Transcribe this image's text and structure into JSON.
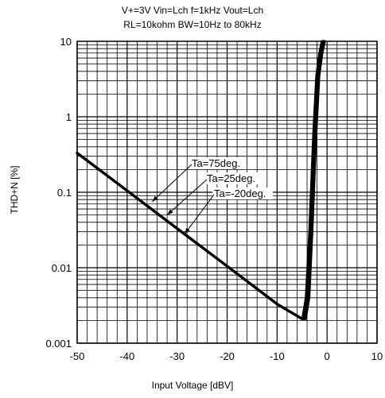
{
  "chart_data": {
    "type": "line",
    "title_lines": [
      "V+=3V Vin=Lch f=1kHz Vout=Lch",
      "RL=10kohm BW=10Hz to 80kHz"
    ],
    "xlabel": "Input Voltage [dBV]",
    "ylabel": "THD+N [%]",
    "xlim": [
      -50,
      10
    ],
    "ylim": [
      0.001,
      10
    ],
    "yscale": "log",
    "grid": true,
    "x_ticks": [
      -50,
      -40,
      -30,
      -20,
      -10,
      0,
      10
    ],
    "y_ticks": [
      0.001,
      0.01,
      0.1,
      1,
      10
    ],
    "x_tick_labels": [
      "-50",
      "-40",
      "-30",
      "-20",
      "-10",
      "0",
      "10"
    ],
    "y_tick_labels": [
      "0.001",
      "0.01",
      "0.1",
      "1",
      "10"
    ],
    "series": [
      {
        "name": "Ta=75deg.",
        "x": [
          -50,
          -40,
          -30,
          -20,
          -10,
          -5,
          -4.3,
          -3.6,
          -3.0,
          -2.2,
          -1.6,
          -1.0,
          -0.5
        ],
        "y": [
          0.33,
          0.105,
          0.033,
          0.0105,
          0.0033,
          0.0021,
          0.0021,
          0.004,
          0.03,
          0.6,
          3.5,
          7.0,
          10.0
        ]
      },
      {
        "name": "Ta=25deg.",
        "x": [
          -50,
          -40,
          -30,
          -20,
          -10,
          -5,
          -4.6,
          -3.9,
          -3.2,
          -2.4,
          -1.8,
          -1.2,
          -0.7
        ],
        "y": [
          0.33,
          0.105,
          0.033,
          0.0105,
          0.0033,
          0.0021,
          0.0021,
          0.004,
          0.03,
          0.6,
          3.5,
          7.0,
          10.0
        ]
      },
      {
        "name": "Ta=-20deg.",
        "x": [
          -50,
          -40,
          -30,
          -20,
          -10,
          -5,
          -4.9,
          -4.2,
          -3.5,
          -2.7,
          -2.1,
          -1.5,
          -1.0
        ],
        "y": [
          0.33,
          0.105,
          0.033,
          0.0105,
          0.0033,
          0.0021,
          0.0021,
          0.004,
          0.03,
          0.6,
          3.5,
          7.0,
          10.0
        ]
      }
    ],
    "annotations": [
      {
        "text": "Ta=75deg.",
        "arrow_to": [
          -35,
          0.075
        ]
      },
      {
        "text": "Ta=25deg.",
        "arrow_to": [
          -32,
          0.05
        ]
      },
      {
        "text": "Ta=-20deg.",
        "arrow_to": [
          -28.5,
          0.028
        ]
      }
    ],
    "color": "#000000"
  }
}
